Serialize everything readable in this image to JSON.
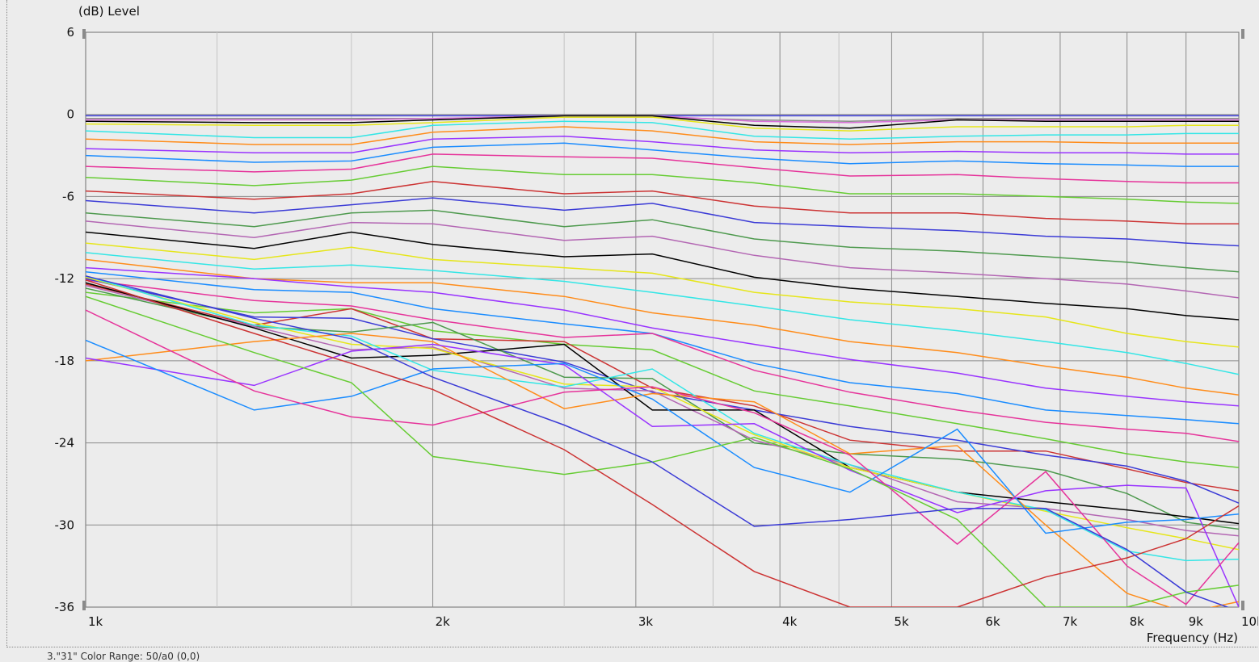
{
  "chart_data": {
    "type": "line",
    "ylabel": "(dB)  Level",
    "xlabel": "Frequency  (Hz)",
    "x_scale": "log",
    "xlim": [
      1000,
      10000
    ],
    "ylim": [
      -36,
      6
    ],
    "grid": true,
    "y_ticks": [
      6,
      0,
      -6,
      -12,
      -18,
      -24,
      -30,
      -36
    ],
    "x_ticks": [
      {
        "value": 1000,
        "label": "1k"
      },
      {
        "value": 2000,
        "label": "2k"
      },
      {
        "value": 3000,
        "label": "3k"
      },
      {
        "value": 4000,
        "label": "4k"
      },
      {
        "value": 5000,
        "label": "5k"
      },
      {
        "value": 6000,
        "label": "6k"
      },
      {
        "value": 7000,
        "label": "7k"
      },
      {
        "value": 8000,
        "label": "8k"
      },
      {
        "value": 9000,
        "label": "9k"
      },
      {
        "value": 10000,
        "label": "10k"
      }
    ],
    "x_minor_grid": [
      1300,
      1700,
      2600,
      3500,
      4500
    ],
    "x": [
      1000,
      1400,
      1700,
      2000,
      2600,
      3100,
      3800,
      4600,
      5700,
      6800,
      8000,
      9000,
      10000
    ],
    "series": [
      {
        "color": "#3b3bd6",
        "values": [
          -0.1,
          -0.1,
          -0.1,
          -0.1,
          -0.1,
          -0.1,
          -0.1,
          -0.1,
          -0.1,
          -0.1,
          -0.1,
          -0.1,
          -0.1
        ]
      },
      {
        "color": "#8c8c8c",
        "values": [
          -0.3,
          -0.3,
          -0.3,
          -0.3,
          -0.2,
          -0.2,
          -0.4,
          -0.5,
          -0.3,
          -0.3,
          -0.3,
          -0.3,
          -0.3
        ]
      },
      {
        "color": "#d970d9",
        "values": [
          -0.4,
          -0.4,
          -0.4,
          -0.3,
          -0.1,
          -0.1,
          -0.5,
          -0.6,
          -0.4,
          -0.4,
          -0.4,
          -0.4,
          -0.4
        ]
      },
      {
        "color": "#000000",
        "values": [
          -0.5,
          -0.6,
          -0.6,
          -0.4,
          -0.1,
          -0.1,
          -0.8,
          -1.0,
          -0.4,
          -0.5,
          -0.5,
          -0.5,
          -0.5
        ]
      },
      {
        "color": "#e6e61a",
        "values": [
          -0.7,
          -0.8,
          -0.8,
          -0.6,
          -0.2,
          -0.2,
          -1.0,
          -1.2,
          -0.9,
          -0.9,
          -0.9,
          -0.8,
          -0.8
        ]
      },
      {
        "color": "#33e6e6",
        "values": [
          -1.2,
          -1.7,
          -1.7,
          -0.8,
          -0.5,
          -0.6,
          -1.6,
          -1.8,
          -1.6,
          -1.5,
          -1.5,
          -1.4,
          -1.4
        ]
      },
      {
        "color": "#ff8c1a",
        "values": [
          -1.8,
          -2.2,
          -2.2,
          -1.3,
          -0.9,
          -1.2,
          -2.0,
          -2.2,
          -2.0,
          -2.0,
          -2.1,
          -2.1,
          -2.1
        ]
      },
      {
        "color": "#9933ff",
        "values": [
          -2.5,
          -2.8,
          -2.8,
          -1.8,
          -1.6,
          -2.0,
          -2.6,
          -2.8,
          -2.7,
          -2.8,
          -2.8,
          -2.9,
          -2.9
        ]
      },
      {
        "color": "#1a8cff",
        "values": [
          -3.0,
          -3.5,
          -3.4,
          -2.4,
          -2.1,
          -2.6,
          -3.2,
          -3.6,
          -3.4,
          -3.6,
          -3.7,
          -3.8,
          -3.8
        ]
      },
      {
        "color": "#e6339a",
        "values": [
          -3.8,
          -4.2,
          -4.0,
          -2.9,
          -3.1,
          -3.2,
          -3.9,
          -4.5,
          -4.4,
          -4.7,
          -4.9,
          -5.0,
          -5.0
        ]
      },
      {
        "color": "#66cc33",
        "values": [
          -4.6,
          -5.2,
          -4.8,
          -3.8,
          -4.4,
          -4.4,
          -5.0,
          -5.8,
          -5.8,
          -6.0,
          -6.2,
          -6.4,
          -6.5
        ]
      },
      {
        "color": "#cc3333",
        "values": [
          -5.6,
          -6.2,
          -5.8,
          -4.9,
          -5.8,
          -5.6,
          -6.7,
          -7.2,
          -7.2,
          -7.6,
          -7.8,
          -8.0,
          -8.0
        ]
      },
      {
        "color": "#3b3bd6",
        "values": [
          -6.3,
          -7.2,
          -6.6,
          -6.1,
          -7.0,
          -6.5,
          -7.9,
          -8.2,
          -8.5,
          -8.9,
          -9.1,
          -9.4,
          -9.6
        ]
      },
      {
        "color": "#4d994d",
        "values": [
          -7.2,
          -8.2,
          -7.2,
          -7.0,
          -8.2,
          -7.7,
          -9.1,
          -9.7,
          -10.0,
          -10.4,
          -10.8,
          -11.2,
          -11.5
        ]
      },
      {
        "color": "#b366b3",
        "values": [
          -7.8,
          -9.0,
          -7.9,
          -8.0,
          -9.2,
          -8.9,
          -10.3,
          -11.2,
          -11.6,
          -12.0,
          -12.4,
          -12.9,
          -13.4
        ]
      },
      {
        "color": "#000000",
        "values": [
          -8.6,
          -9.8,
          -8.6,
          -9.5,
          -10.4,
          -10.2,
          -11.9,
          -12.7,
          -13.3,
          -13.8,
          -14.2,
          -14.7,
          -15.0
        ]
      },
      {
        "color": "#e6e61a",
        "values": [
          -9.4,
          -10.6,
          -9.7,
          -10.6,
          -11.2,
          -11.6,
          -13.0,
          -13.7,
          -14.2,
          -14.8,
          -16.0,
          -16.6,
          -17.0
        ]
      },
      {
        "color": "#33e6e6",
        "values": [
          -10.1,
          -11.3,
          -11.0,
          -11.4,
          -12.2,
          -13.0,
          -14.0,
          -15.0,
          -15.8,
          -16.6,
          -17.4,
          -18.2,
          -19.0
        ]
      },
      {
        "color": "#ff8c1a",
        "values": [
          -10.6,
          -12.0,
          -12.3,
          -12.3,
          -13.3,
          -14.5,
          -15.4,
          -16.6,
          -17.4,
          -18.4,
          -19.2,
          -20.0,
          -20.5
        ]
      },
      {
        "color": "#9933ff",
        "values": [
          -11.2,
          -12.0,
          -12.6,
          -13.0,
          -14.3,
          -15.6,
          -16.8,
          -17.9,
          -18.9,
          -20.0,
          -20.6,
          -21.0,
          -21.3
        ]
      },
      {
        "color": "#1a8cff",
        "values": [
          -11.5,
          -12.8,
          -13.0,
          -14.2,
          -15.3,
          -16.0,
          -18.2,
          -19.6,
          -20.4,
          -21.6,
          -22.0,
          -22.3,
          -22.6
        ]
      },
      {
        "color": "#e6339a",
        "values": [
          -12.1,
          -13.6,
          -14.0,
          -15.0,
          -16.3,
          -16.0,
          -18.7,
          -20.3,
          -21.6,
          -22.5,
          -23.0,
          -23.3,
          -23.9
        ]
      },
      {
        "color": "#66cc33",
        "values": [
          -13.0,
          -14.5,
          -14.2,
          -15.8,
          -16.8,
          -17.2,
          -20.2,
          -21.3,
          -22.6,
          -23.7,
          -24.8,
          -25.4,
          -25.8
        ]
      },
      {
        "color": "#cc3333",
        "values": [
          -12.4,
          -15.4,
          -14.2,
          -16.4,
          -16.6,
          -20.0,
          -21.3,
          -23.8,
          -24.6,
          -24.6,
          -25.9,
          -26.9,
          -27.5
        ]
      },
      {
        "color": "#3b3bd6",
        "values": [
          -12.0,
          -14.8,
          -14.9,
          -16.4,
          -18.1,
          -20.3,
          -21.6,
          -22.8,
          -23.8,
          -24.9,
          -25.7,
          -26.8,
          -28.4
        ]
      },
      {
        "color": "#4d994d",
        "values": [
          -12.7,
          -15.5,
          -15.9,
          -15.2,
          -19.2,
          -19.3,
          -24.0,
          -24.8,
          -25.2,
          -26.0,
          -27.7,
          -29.8,
          -30.3
        ]
      },
      {
        "color": "#b366b3",
        "values": [
          -12.5,
          -15.5,
          -17.2,
          -17.0,
          -20.0,
          -20.2,
          -23.8,
          -25.6,
          -28.3,
          -28.8,
          -29.6,
          -30.4,
          -30.8
        ]
      },
      {
        "color": "#000000",
        "values": [
          -12.3,
          -15.6,
          -17.8,
          -17.6,
          -16.8,
          -21.6,
          -21.6,
          -25.8,
          -27.6,
          -28.3,
          -28.9,
          -29.4,
          -29.9
        ]
      },
      {
        "color": "#e6e61a",
        "values": [
          -11.9,
          -15.2,
          -16.8,
          -17.1,
          -19.7,
          -19.9,
          -23.4,
          -25.8,
          -27.6,
          -29.0,
          -30.2,
          -31.0,
          -31.8
        ]
      },
      {
        "color": "#33e6e6",
        "values": [
          -11.8,
          -15.4,
          -16.2,
          -18.7,
          -19.9,
          -18.6,
          -23.3,
          -25.6,
          -27.6,
          -28.9,
          -31.9,
          -32.6,
          -32.5
        ]
      },
      {
        "color": "#ff8c1a",
        "values": [
          -18.0,
          -16.6,
          -16.0,
          -16.6,
          -21.5,
          -20.4,
          -21.0,
          -24.8,
          -24.2,
          -30.0,
          -35.0,
          -36.4,
          -35.6
        ]
      },
      {
        "color": "#9933ff",
        "values": [
          -17.8,
          -19.8,
          -17.3,
          -16.8,
          -18.3,
          -22.8,
          -22.6,
          -26.0,
          -29.1,
          -27.5,
          -27.1,
          -27.3,
          -36.0
        ]
      },
      {
        "color": "#1a8cff",
        "values": [
          -16.5,
          -21.6,
          -20.6,
          -18.6,
          -18.2,
          -20.8,
          -25.8,
          -27.6,
          -23.0,
          -30.6,
          -29.8,
          -29.6,
          -29.2
        ]
      },
      {
        "color": "#e6339a",
        "values": [
          -14.3,
          -20.2,
          -22.1,
          -22.7,
          -20.3,
          -19.9,
          -21.8,
          -24.9,
          -31.4,
          -26.1,
          -33.0,
          -35.8,
          -31.3
        ]
      },
      {
        "color": "#66cc33",
        "values": [
          -13.3,
          -17.4,
          -19.6,
          -25.0,
          -26.3,
          -25.4,
          -23.6,
          -25.9,
          -29.6,
          -36.0,
          -36.0,
          -34.9,
          -34.4
        ]
      },
      {
        "color": "#cc3333",
        "values": [
          -12.1,
          -16.0,
          -18.2,
          -20.1,
          -24.5,
          -28.5,
          -33.4,
          -36.0,
          -36.0,
          -33.8,
          -32.4,
          -31.0,
          -28.6
        ]
      },
      {
        "color": "#3b3bd6",
        "values": [
          -11.8,
          -14.9,
          -16.4,
          -19.2,
          -22.7,
          -25.4,
          -30.1,
          -29.6,
          -28.8,
          -28.8,
          -31.8,
          -34.9,
          -36.3
        ]
      }
    ]
  },
  "status_text": "3.\"31\" Color Range: 50/a0 (0,0)"
}
